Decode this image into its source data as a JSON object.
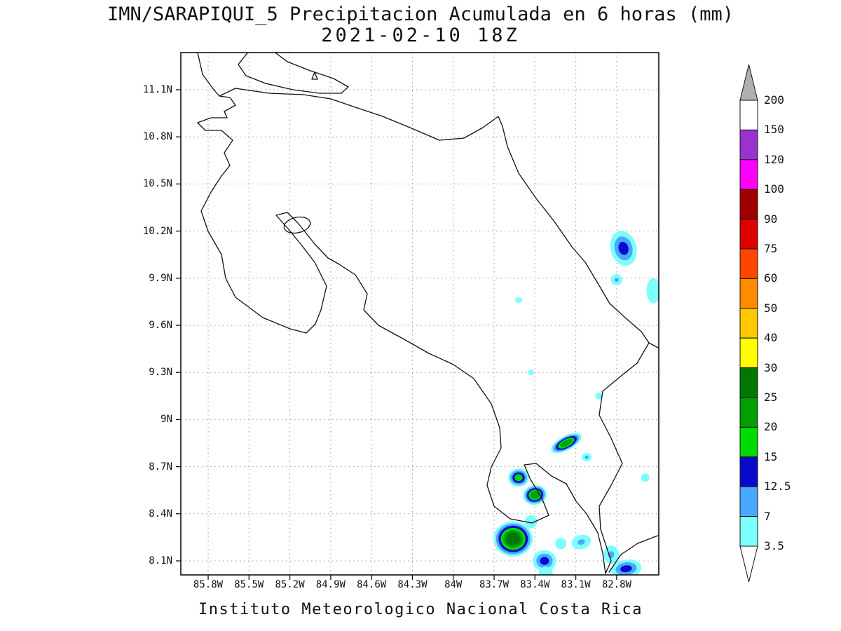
{
  "chart_data": {
    "type": "heatmap",
    "title": "IMN/SARAPIQUI_5 Precipitacion Acumulada en 6 horas (mm)",
    "subtitle": "2021-02-10 18Z",
    "caption": "Instituto Meteorologico Nacional Costa Rica",
    "region": "Costa Rica",
    "units": "mm",
    "x_tick_labels": [
      "85.8W",
      "85.5W",
      "85.2W",
      "84.9W",
      "84.6W",
      "84.3W",
      "84W",
      "83.7W",
      "83.4W",
      "83.1W",
      "82.8W"
    ],
    "y_tick_labels": [
      "11.1N",
      "10.8N",
      "10.5N",
      "10.2N",
      "9.9N",
      "9.6N",
      "9.3N",
      "9N",
      "8.7N",
      "8.4N",
      "8.1N"
    ],
    "grid": "dotted",
    "colorbar": {
      "position": "right",
      "tick_labels": [
        "200",
        "150",
        "120",
        "100",
        "90",
        "75",
        "60",
        "50",
        "40",
        "30",
        "25",
        "20",
        "15",
        "12.5",
        "7",
        "3.5"
      ],
      "cell_colors_top_to_bottom": [
        "#FFFFFF",
        "#9A32CD",
        "#FF00FF",
        "#A00000",
        "#E00000",
        "#FF4600",
        "#FF8C00",
        "#FFC800",
        "#FFFF00",
        "#007800",
        "#00A000",
        "#00DC00",
        "#0A0ACD",
        "#4AA8FF",
        "#7DFFFF"
      ],
      "over_color": "#B0B0B0",
      "under_color": "#FFFFFF"
    },
    "shading_bands_mm": [
      3.5,
      7,
      12.5,
      15,
      20,
      25
    ],
    "shading_band_colors": [
      "#7DFFFF",
      "#4AA8FF",
      "#0A0ACD",
      "#00DC00",
      "#00A000",
      "#007800"
    ],
    "precip_cells": [
      {
        "lon_w": 82.75,
        "lat_n": 10.09,
        "rx_deg": 0.095,
        "ry_deg": 0.112,
        "rot_deg": -15,
        "max_band_mm": 12.5
      },
      {
        "lon_w": 82.8,
        "lat_n": 9.89,
        "rx_deg": 0.041,
        "ry_deg": 0.036,
        "rot_deg": 0,
        "max_band_mm": 7
      },
      {
        "lon_w": 82.53,
        "lat_n": 9.82,
        "rx_deg": 0.051,
        "ry_deg": 0.08,
        "rot_deg": 0,
        "max_band_mm": 3.5
      },
      {
        "lon_w": 83.52,
        "lat_n": 9.76,
        "rx_deg": 0.026,
        "ry_deg": 0.018,
        "rot_deg": 0,
        "max_band_mm": 3.5
      },
      {
        "lon_w": 83.43,
        "lat_n": 9.3,
        "rx_deg": 0.021,
        "ry_deg": 0.018,
        "rot_deg": 0,
        "max_band_mm": 3.5
      },
      {
        "lon_w": 82.93,
        "lat_n": 9.15,
        "rx_deg": 0.026,
        "ry_deg": 0.022,
        "rot_deg": 0,
        "max_band_mm": 3.5
      },
      {
        "lon_w": 83.17,
        "lat_n": 8.85,
        "rx_deg": 0.124,
        "ry_deg": 0.045,
        "rot_deg": -28,
        "max_band_mm": 20
      },
      {
        "lon_w": 83.02,
        "lat_n": 8.76,
        "rx_deg": 0.036,
        "ry_deg": 0.027,
        "rot_deg": 0,
        "max_band_mm": 7
      },
      {
        "lon_w": 83.52,
        "lat_n": 8.63,
        "rx_deg": 0.077,
        "ry_deg": 0.058,
        "rot_deg": 0,
        "max_band_mm": 15
      },
      {
        "lon_w": 83.4,
        "lat_n": 8.52,
        "rx_deg": 0.087,
        "ry_deg": 0.063,
        "rot_deg": -10,
        "max_band_mm": 20
      },
      {
        "lon_w": 82.59,
        "lat_n": 8.63,
        "rx_deg": 0.031,
        "ry_deg": 0.027,
        "rot_deg": 0,
        "max_band_mm": 3.5
      },
      {
        "lon_w": 83.56,
        "lat_n": 8.24,
        "rx_deg": 0.144,
        "ry_deg": 0.112,
        "rot_deg": 0,
        "max_band_mm": 25
      },
      {
        "lon_w": 83.33,
        "lat_n": 8.1,
        "rx_deg": 0.087,
        "ry_deg": 0.067,
        "rot_deg": 0,
        "max_band_mm": 12.5
      },
      {
        "lon_w": 83.06,
        "lat_n": 8.22,
        "rx_deg": 0.072,
        "ry_deg": 0.045,
        "rot_deg": -15,
        "max_band_mm": 7
      },
      {
        "lon_w": 82.84,
        "lat_n": 8.14,
        "rx_deg": 0.057,
        "ry_deg": 0.058,
        "rot_deg": 0,
        "max_band_mm": 7
      },
      {
        "lon_w": 82.73,
        "lat_n": 8.05,
        "rx_deg": 0.113,
        "ry_deg": 0.058,
        "rot_deg": -8,
        "max_band_mm": 12.5
      },
      {
        "lon_w": 83.21,
        "lat_n": 8.21,
        "rx_deg": 0.041,
        "ry_deg": 0.036,
        "rot_deg": 0,
        "max_band_mm": 3.5
      },
      {
        "lon_w": 83.43,
        "lat_n": 8.35,
        "rx_deg": 0.046,
        "ry_deg": 0.04,
        "rot_deg": 0,
        "max_band_mm": 3.5
      },
      {
        "lon_w": 83.32,
        "lat_n": 8.02,
        "rx_deg": 0.051,
        "ry_deg": 0.045,
        "rot_deg": 0,
        "max_band_mm": 3.5
      }
    ]
  }
}
